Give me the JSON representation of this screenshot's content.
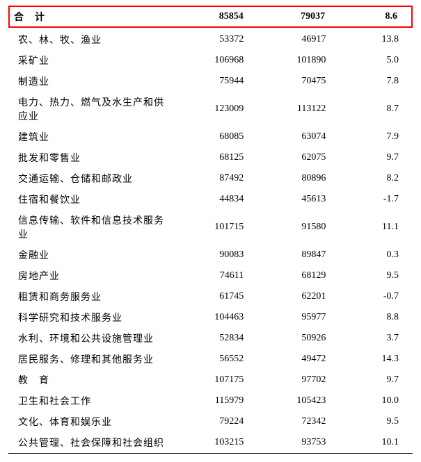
{
  "highlight_border_color": "#ff0000",
  "text_color": "#000000",
  "background_color": "#ffffff",
  "border_color": "#000000",
  "font_family": "SimSun",
  "base_font_size": 14,
  "header": {
    "label": "合　计",
    "col1": "85854",
    "col2": "79037",
    "col3": "8.6"
  },
  "rows": [
    {
      "label": "农、林、牧、渔业",
      "col1": "53372",
      "col2": "46917",
      "col3": "13.8"
    },
    {
      "label": "采矿业",
      "col1": "106968",
      "col2": "101890",
      "col3": "5.0"
    },
    {
      "label": "制造业",
      "col1": "75944",
      "col2": "70475",
      "col3": "7.8"
    },
    {
      "label": "电力、热力、燃气及水生产和供应业",
      "col1": "123009",
      "col2": "113122",
      "col3": "8.7"
    },
    {
      "label": "建筑业",
      "col1": "68085",
      "col2": "63074",
      "col3": "7.9"
    },
    {
      "label": "批发和零售业",
      "col1": "68125",
      "col2": "62075",
      "col3": "9.7"
    },
    {
      "label": "交通运输、仓储和邮政业",
      "col1": "87492",
      "col2": "80896",
      "col3": "8.2"
    },
    {
      "label": "住宿和餐饮业",
      "col1": "44834",
      "col2": "45613",
      "col3": "-1.7"
    },
    {
      "label": "信息传输、软件和信息技术服务业",
      "col1": "101715",
      "col2": "91580",
      "col3": "11.1"
    },
    {
      "label": "金融业",
      "col1": "90083",
      "col2": "89847",
      "col3": "0.3"
    },
    {
      "label": "房地产业",
      "col1": "74611",
      "col2": "68129",
      "col3": "9.5"
    },
    {
      "label": "租赁和商务服务业",
      "col1": "61745",
      "col2": "62201",
      "col3": "-0.7"
    },
    {
      "label": "科学研究和技术服务业",
      "col1": "104463",
      "col2": "95977",
      "col3": "8.8"
    },
    {
      "label": "水利、环境和公共设施管理业",
      "col1": "52834",
      "col2": "50926",
      "col3": "3.7"
    },
    {
      "label": "居民服务、修理和其他服务业",
      "col1": "56552",
      "col2": "49472",
      "col3": "14.3"
    },
    {
      "label": "教　育",
      "col1": "107175",
      "col2": "97702",
      "col3": "9.7"
    },
    {
      "label": "卫生和社会工作",
      "col1": "115979",
      "col2": "105423",
      "col3": "10.0"
    },
    {
      "label": "文化、体育和娱乐业",
      "col1": "79224",
      "col2": "72342",
      "col3": "9.5"
    },
    {
      "label": "公共管理、社会保障和社会组织",
      "col1": "103215",
      "col2": "93753",
      "col3": "10.1"
    }
  ]
}
